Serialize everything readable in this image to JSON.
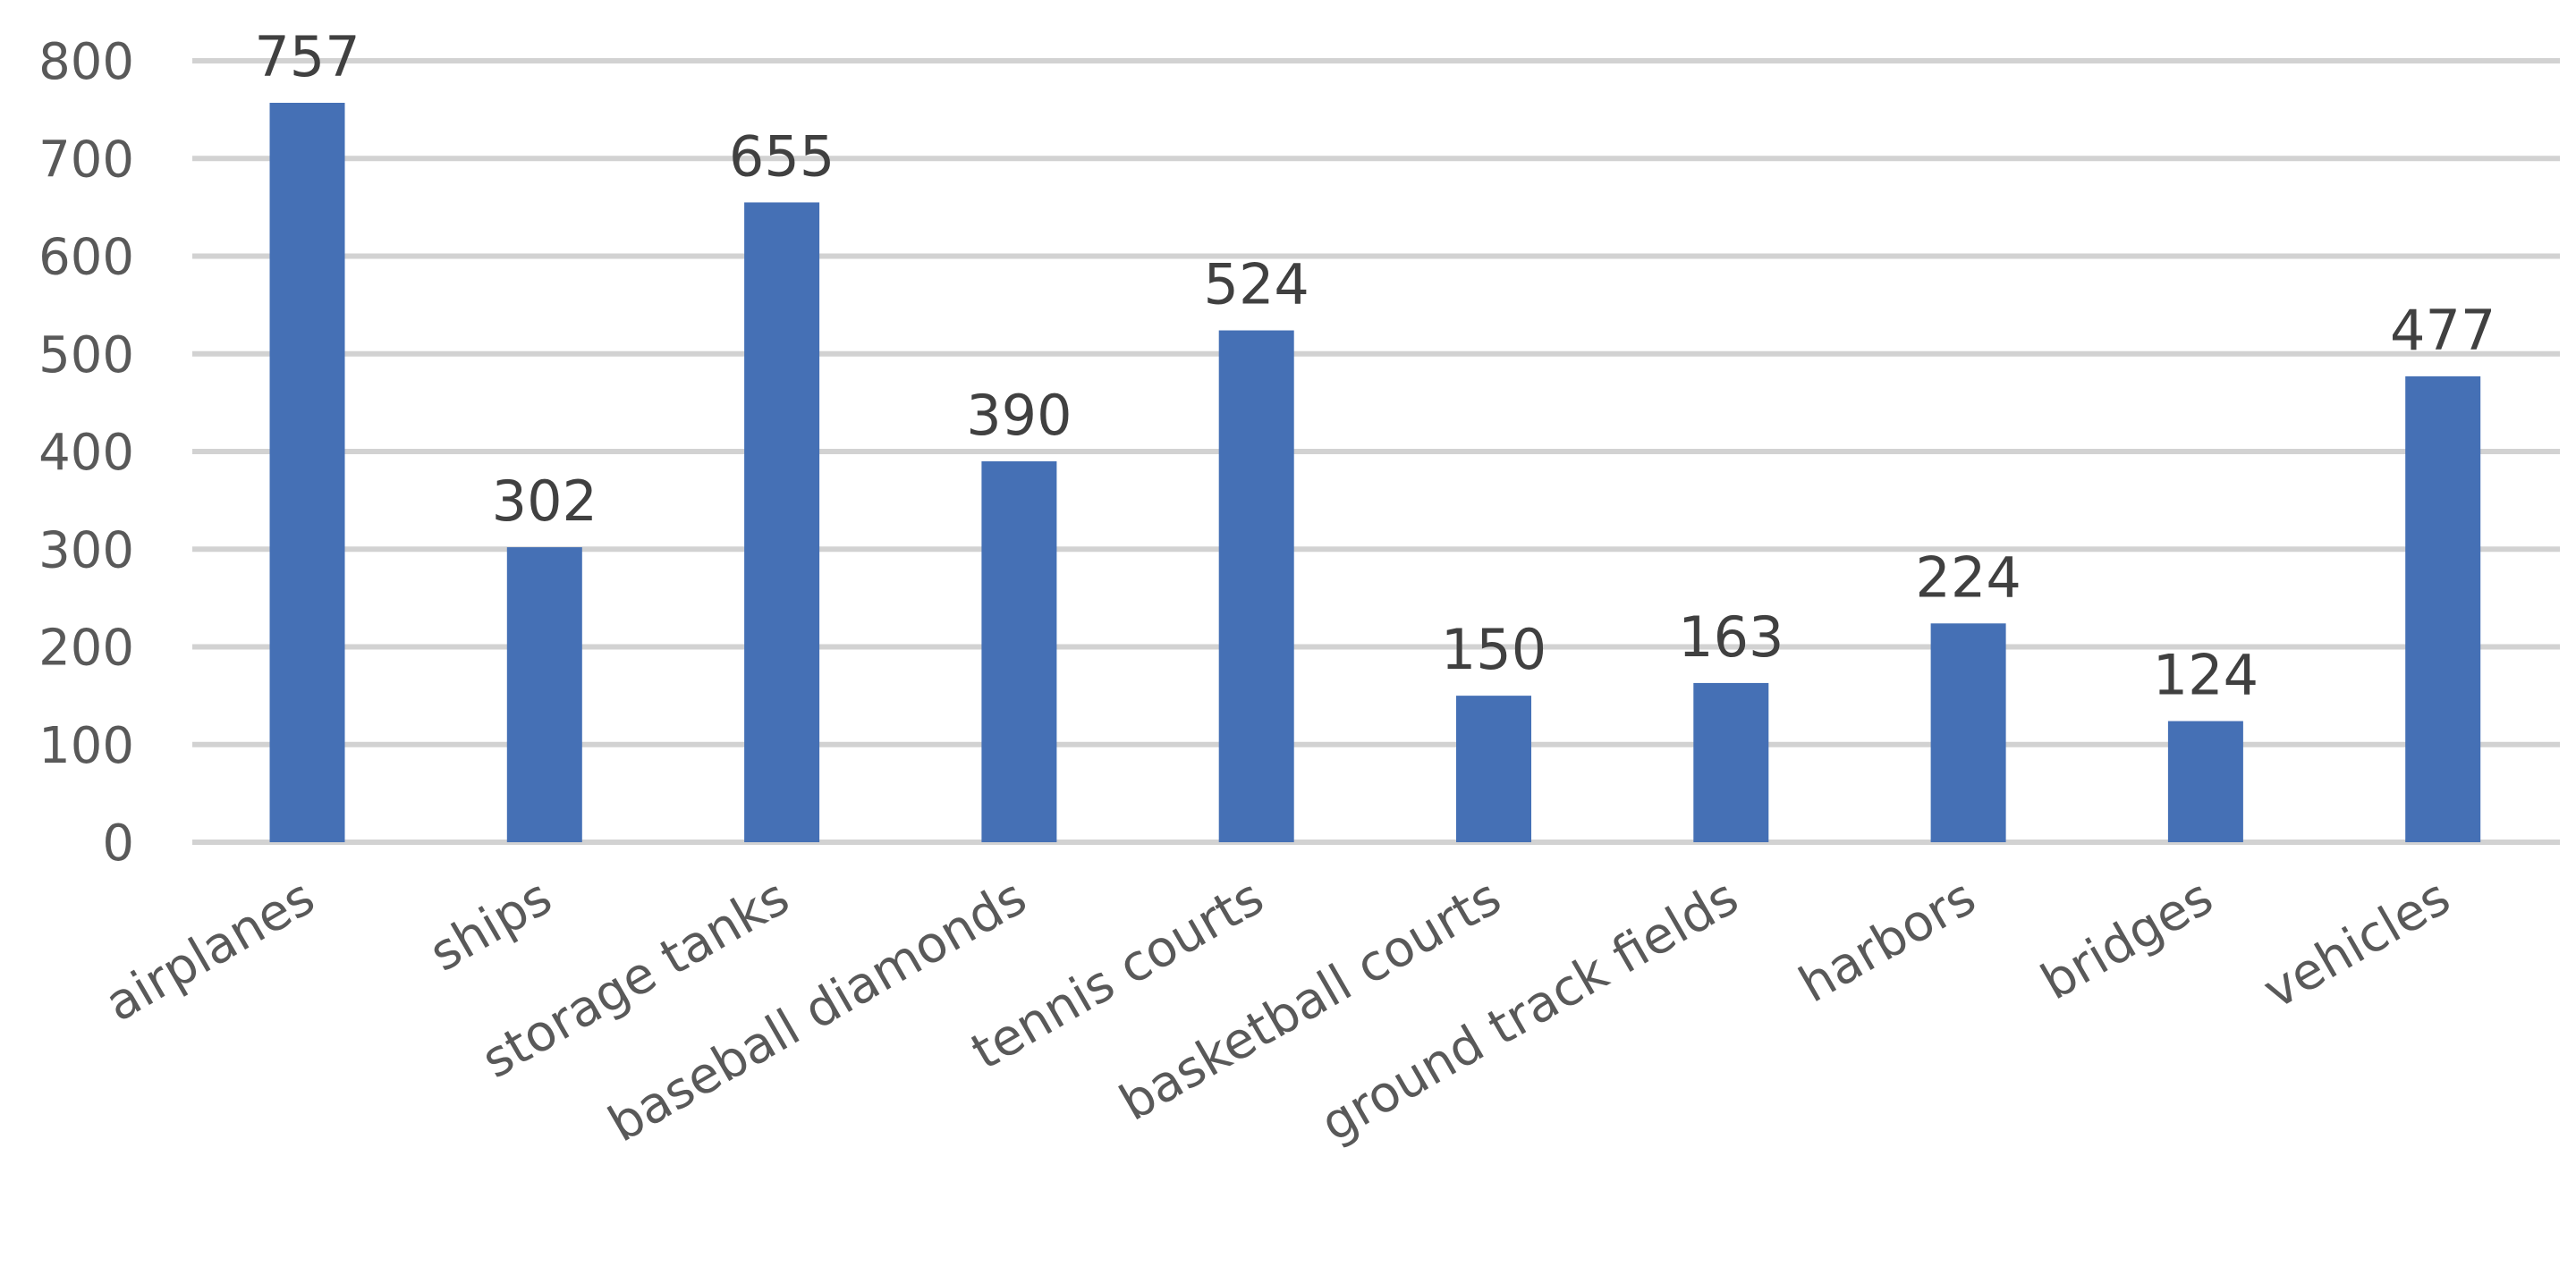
{
  "chart_data": {
    "type": "bar",
    "title": "",
    "xlabel": "",
    "ylabel": "",
    "categories": [
      "airplanes",
      "ships",
      "storage tanks",
      "baseball diamonds",
      "tennis courts",
      "basketball courts",
      "ground track fields",
      "harbors",
      "bridges",
      "vehicles"
    ],
    "values": [
      757,
      302,
      655,
      390,
      524,
      150,
      163,
      224,
      124,
      477
    ],
    "data_labels": [
      "757",
      "302",
      "655",
      "390",
      "524",
      "150",
      "163",
      "224",
      "124",
      "477"
    ],
    "ylim": [
      0,
      800
    ],
    "y_ticks": [
      "0",
      "100",
      "200",
      "300",
      "400",
      "500",
      "600",
      "700",
      "800"
    ],
    "grid": true,
    "legend": "none",
    "bar_color": "#4570b5",
    "grid_color": "#d2d2d2",
    "text_color": "#595959",
    "label_color": "#404040"
  }
}
